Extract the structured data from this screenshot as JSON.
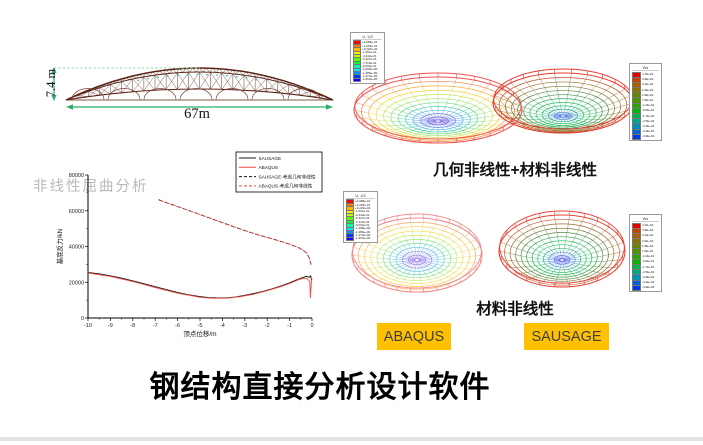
{
  "slide": {
    "title": "钢结构直接分析设计软件",
    "watermark": "非线性屈曲分析",
    "background": "#ffffff",
    "bottom_bar_color": "#e2e2e2"
  },
  "structure_drawing": {
    "height_label": "7.4 m",
    "span_label": "67m",
    "truss_color": "#5a2418",
    "scallop_color": "#7a4030",
    "brace_dot_color": "#39c2c9",
    "dimension_color": "#2fae6b",
    "dotted_color": "#86d9ae"
  },
  "chart_data": {
    "type": "line",
    "title": "",
    "xlabel": "顶点位移/m",
    "ylabel": "基底反力/kN",
    "xlim": [
      -10,
      0
    ],
    "ylim": [
      0,
      80000
    ],
    "xticks": [
      -10,
      -9,
      -8,
      -7,
      -6,
      -5,
      -4,
      -3,
      -2,
      -1,
      0
    ],
    "yticks": [
      0,
      20000,
      40000,
      60000,
      80000
    ],
    "grid": false,
    "legend_position": "top-right",
    "series": [
      {
        "name": "SAUSAGE",
        "color": "#1a1a1a",
        "dash": false,
        "points": [
          [
            -10,
            25500
          ],
          [
            -9.5,
            24700
          ],
          [
            -9,
            23600
          ],
          [
            -8.5,
            22300
          ],
          [
            -8,
            20800
          ],
          [
            -7.5,
            19200
          ],
          [
            -7,
            17500
          ],
          [
            -6.5,
            15900
          ],
          [
            -6,
            14300
          ],
          [
            -5.5,
            13000
          ],
          [
            -5,
            12000
          ],
          [
            -4.6,
            11400
          ],
          [
            -4.2,
            11200
          ],
          [
            -3.8,
            11300
          ],
          [
            -3.4,
            11800
          ],
          [
            -3,
            12700
          ],
          [
            -2.6,
            13700
          ],
          [
            -2.2,
            14900
          ],
          [
            -1.8,
            16300
          ],
          [
            -1.4,
            17900
          ],
          [
            -1,
            19700
          ],
          [
            -0.7,
            21300
          ],
          [
            -0.4,
            22700
          ],
          [
            -0.25,
            23300
          ],
          [
            -0.12,
            22800
          ],
          [
            -0.06,
            23600
          ],
          [
            -0.02,
            21000
          ]
        ]
      },
      {
        "name": "ABAQUS",
        "color": "#f04a42",
        "dash": false,
        "points": [
          [
            -10,
            25200
          ],
          [
            -9,
            23300
          ],
          [
            -8,
            20400
          ],
          [
            -7,
            17000
          ],
          [
            -6,
            13900
          ],
          [
            -5,
            11600
          ],
          [
            -4.4,
            11000
          ],
          [
            -3.8,
            11100
          ],
          [
            -3.2,
            11900
          ],
          [
            -2.6,
            13300
          ],
          [
            -2,
            15300
          ],
          [
            -1.4,
            17500
          ],
          [
            -1,
            19300
          ],
          [
            -0.6,
            21400
          ],
          [
            -0.35,
            22300
          ],
          [
            -0.2,
            21800
          ],
          [
            -0.1,
            20300
          ],
          [
            -0.07,
            11200
          ],
          [
            -0.03,
            19500
          ],
          [
            0,
            22300
          ]
        ]
      },
      {
        "name": "SAUSAGE-考虑几何非线性",
        "color": "#1a1a1a",
        "dash": true,
        "points": [
          [
            -6.85,
            66200
          ],
          [
            -6.4,
            64100
          ],
          [
            -6,
            62400
          ],
          [
            -5.5,
            60100
          ],
          [
            -5,
            57900
          ],
          [
            -4.5,
            55600
          ],
          [
            -4,
            53300
          ],
          [
            -3.5,
            51100
          ],
          [
            -3,
            48900
          ],
          [
            -2.5,
            46900
          ],
          [
            -2,
            45100
          ],
          [
            -1.5,
            43300
          ],
          [
            -1,
            41300
          ],
          [
            -0.7,
            39900
          ],
          [
            -0.5,
            38700
          ],
          [
            -0.3,
            37000
          ],
          [
            -0.2,
            35500
          ],
          [
            -0.12,
            33500
          ],
          [
            -0.07,
            31200
          ],
          [
            -0.04,
            29800
          ]
        ]
      },
      {
        "name": "ABAQUS-考虑几何非线性",
        "color": "#f04a42",
        "dash": true,
        "points": [
          [
            -6.8,
            65800
          ],
          [
            -6.3,
            63800
          ],
          [
            -5.8,
            61500
          ],
          [
            -5.2,
            58800
          ],
          [
            -4.6,
            56100
          ],
          [
            -4,
            53400
          ],
          [
            -3.4,
            50700
          ],
          [
            -2.8,
            48100
          ],
          [
            -2.2,
            45800
          ],
          [
            -1.6,
            43600
          ],
          [
            -1,
            41400
          ],
          [
            -0.6,
            39400
          ],
          [
            -0.35,
            37600
          ],
          [
            -0.2,
            35700
          ],
          [
            -0.12,
            33700
          ],
          [
            -0.07,
            31400
          ],
          [
            -0.04,
            30000
          ]
        ]
      }
    ]
  },
  "contours": {
    "caption_top": "几何非线性+材料非线性",
    "caption_bottom": "材料非线性",
    "domes": [
      {
        "id": "dome-a",
        "palette": [
          "#ef5350",
          "#f4803e",
          "#f7ab3a",
          "#f2d53c",
          "#cfe24e",
          "#9fe35e",
          "#6edd7f",
          "#4fd0a6",
          "#4bbcd8",
          "#5b8fe8",
          "#6168e6",
          "#7b68de"
        ]
      },
      {
        "id": "dome-b",
        "palette": [
          "#e53c2e",
          "#bc5526",
          "#9c6a2a",
          "#7f7a32",
          "#61863a",
          "#45974a",
          "#30ad56",
          "#2cbe62",
          "#31c06e",
          "#2fae8e",
          "#3b96c0",
          "#3f6ee0"
        ]
      },
      {
        "id": "dome-c",
        "palette": [
          "#f28b8b",
          "#f4a966",
          "#f6c94f",
          "#f2e05a",
          "#c9e96a",
          "#93e878",
          "#6fdca2",
          "#62c8e0",
          "#7aa0ee",
          "#8b80e8",
          "#9a7ce4"
        ]
      },
      {
        "id": "dome-d",
        "palette": [
          "#e8453a",
          "#c25c2c",
          "#a06c2e",
          "#7f7c36",
          "#5b8c40",
          "#3da04e",
          "#2bb45c",
          "#2ec06a",
          "#36b882",
          "#3b9cc2",
          "#4b76e2",
          "#4b5ce4"
        ]
      }
    ],
    "legend_abaqus": {
      "title": "U, U3",
      "colors": [
        "#ff0000",
        "#ff7b00",
        "#ffb800",
        "#fff200",
        "#b8ff00",
        "#5bff00",
        "#00ff2e",
        "#00ffa2",
        "#00e8ff",
        "#0092ff",
        "#003cff",
        "#1400ff"
      ],
      "values": [
        "+4.088e-01",
        "+2.205e-01",
        "+3.220e-02",
        "-1.561e-01",
        "-3.444e-01",
        "-5.327e-01",
        "-7.210e-01",
        "-9.093e-01",
        "-1.098e+00",
        "-1.286e+00",
        "-1.474e+00",
        "-1.663e+00"
      ]
    },
    "legend_sausage": {
      "title": "Wz",
      "colors": [
        "#e60000",
        "#c44400",
        "#a66000",
        "#8a7400",
        "#6a8400",
        "#4a9400",
        "#2aa400",
        "#00b400",
        "#00b44a",
        "#00a886",
        "#0090b4",
        "#0064d0",
        "#0038e8"
      ],
      "values": [
        "4.7E+02",
        "3.9E+02",
        "3.1E+02",
        "2.3E+02",
        "1.5E+02",
        "7.0E+01",
        "-1.0E+01",
        "-9.0E+01",
        "-1.7E+02",
        "-2.5E+02",
        "-3.3E+02",
        "-4.1E+02",
        "-4.9E+02"
      ]
    }
  },
  "buttons": {
    "background": "#FFC000",
    "text_color": "#404040",
    "items": [
      {
        "label": "ABAQUS"
      },
      {
        "label": "SAUSAGE"
      }
    ]
  }
}
